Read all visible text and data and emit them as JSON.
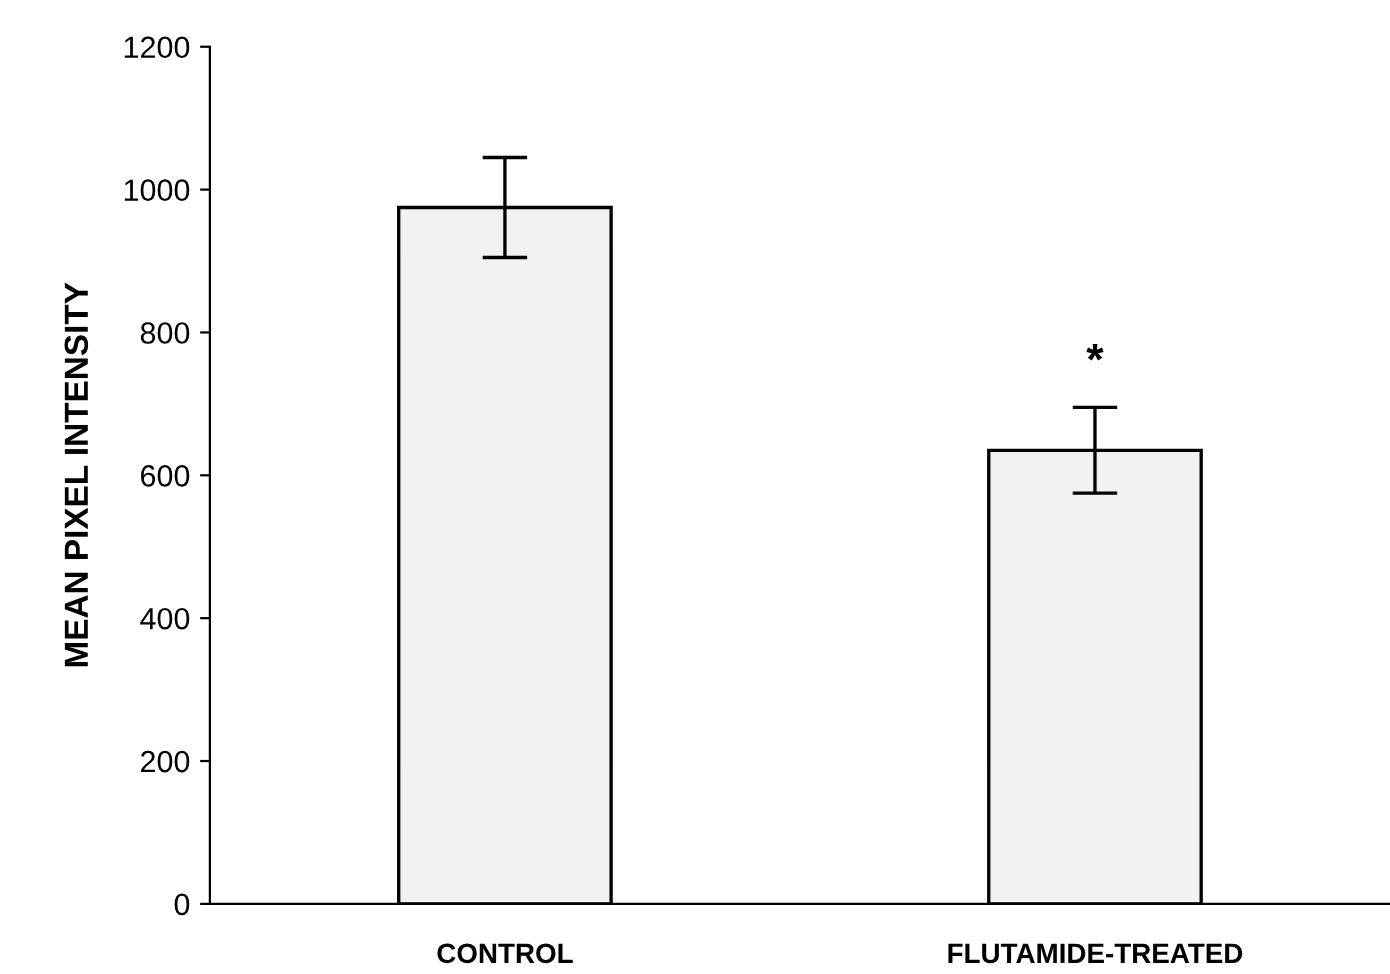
{
  "chart_data": {
    "type": "bar",
    "ylabel": "MEAN PIXEL INTENSITY",
    "categories": [
      "CONTROL",
      "FLUTAMIDE-TREATED"
    ],
    "values": [
      975,
      635
    ],
    "errors": [
      70,
      60
    ],
    "color": "#f2f2f2",
    "ylim": [
      0,
      1200
    ],
    "yticks": [
      0,
      200,
      400,
      600,
      800,
      1000,
      1200
    ],
    "grid": false,
    "annotations": [
      "*"
    ]
  }
}
